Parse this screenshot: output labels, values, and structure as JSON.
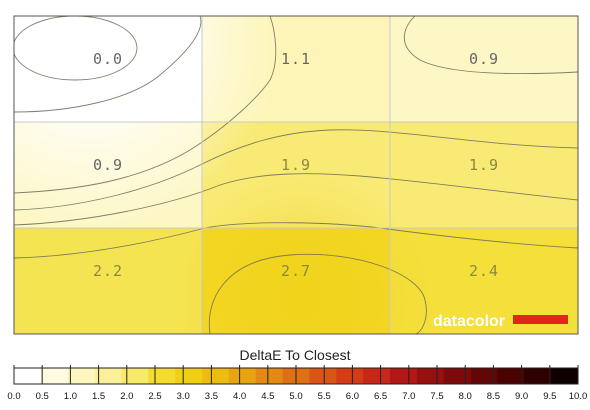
{
  "chart_data": {
    "type": "heatmap",
    "grid_rows": 3,
    "grid_cols": 3,
    "values": [
      [
        0.0,
        1.1,
        0.9
      ],
      [
        0.9,
        1.9,
        1.9
      ],
      [
        2.2,
        2.7,
        2.4
      ]
    ],
    "value_labels": [
      [
        "0.0",
        "1.1",
        "0.9"
      ],
      [
        "0.9",
        "1.9",
        "1.9"
      ],
      [
        "2.2",
        "2.7",
        "2.4"
      ]
    ],
    "color_scale": {
      "title": "DeltaE To Closest",
      "min": 0.0,
      "max": 10.0,
      "step": 0.5,
      "tick_labels": [
        "0.0",
        "0.5",
        "1.0",
        "1.5",
        "2.0",
        "2.5",
        "3.0",
        "3.5",
        "4.0",
        "4.5",
        "5.0",
        "5.5",
        "6.0",
        "6.5",
        "7.0",
        "7.5",
        "8.0",
        "8.5",
        "9.0",
        "9.5",
        "10.0"
      ],
      "colors": [
        "#ffffff",
        "#fefbe0",
        "#fdf6bf",
        "#fbf09a",
        "#f7e96a",
        "#f3dc2f",
        "#f0cf14",
        "#edbb12",
        "#e8a313",
        "#e48a14",
        "#df6f15",
        "#d95516",
        "#d43c16",
        "#c72716",
        "#b01715",
        "#961010",
        "#7d0a0a",
        "#630606",
        "#4a0303",
        "#2e0101",
        "#0f0000"
      ]
    },
    "contours": true,
    "grid": true
  },
  "logo": {
    "text": "datacolor",
    "bar_color": "#e0261b"
  }
}
